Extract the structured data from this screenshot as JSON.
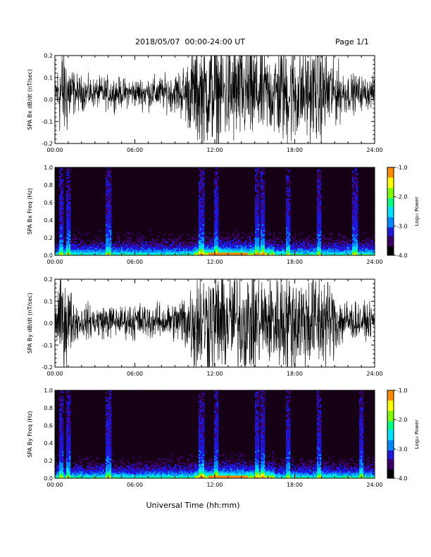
{
  "header": {
    "title": "2018/05/07  00:00-24:00 UT",
    "page": "Page 1/1"
  },
  "colors": {
    "trace": "#000000",
    "spectrogram_background": "#160016",
    "colormap": [
      "#000000",
      "#3b0066",
      "#1f17d9",
      "#0088ff",
      "#00e0ff",
      "#00ff80",
      "#80ff00",
      "#ffff00",
      "#ff8c00",
      "#ff0000"
    ]
  },
  "chart_data": [
    {
      "type": "line",
      "ylabel": "SPA Bx dB/dt (nT/sec)",
      "ylim": [
        -0.2,
        0.2
      ],
      "yticks": [
        "0.2",
        "0.1",
        "0.0",
        "-0.1",
        "-0.2"
      ],
      "xlim": [
        0,
        24
      ],
      "xticks": [
        "00:00",
        "06:00",
        "12:00",
        "18:00",
        "24:00"
      ],
      "grid": false,
      "amplitude_envelope": {
        "hours": [
          0,
          0.5,
          1,
          1.5,
          2,
          3,
          4,
          5,
          6,
          7,
          8,
          9,
          10,
          10.5,
          11,
          12,
          13,
          14,
          15,
          16,
          17,
          18,
          19,
          20,
          21,
          22,
          23,
          24
        ],
        "half_range": [
          0.04,
          0.2,
          0.15,
          0.06,
          0.05,
          0.04,
          0.05,
          0.04,
          0.04,
          0.05,
          0.05,
          0.06,
          0.12,
          0.2,
          0.2,
          0.2,
          0.2,
          0.2,
          0.2,
          0.15,
          0.2,
          0.2,
          0.17,
          0.2,
          0.12,
          0.06,
          0.05,
          0.04
        ]
      }
    },
    {
      "type": "heatmap",
      "ylabel": "SPA Bx Freq (Hz)",
      "ylim": [
        0.0,
        1.0
      ],
      "yticks": [
        "1.0",
        "0.8",
        "0.6",
        "0.4",
        "0.2",
        "0.0"
      ],
      "xlim": [
        0,
        24
      ],
      "xticks": [
        "00:00",
        "06:00",
        "12:00",
        "18:00",
        "24:00"
      ],
      "colorbar": {
        "label": "Log₁₀ Power",
        "range": [
          -4.0,
          -1.0
        ],
        "ticks": [
          "-1.0",
          "-2.0",
          "-3.0",
          "-4.0"
        ]
      },
      "bright_columns_hours": [
        0.5,
        1.0,
        4.0,
        11.0,
        12.1,
        15.2,
        15.6,
        17.5,
        19.8,
        22.5
      ],
      "low_freq_activity_hours": [
        10.5,
        16.5
      ]
    },
    {
      "type": "line",
      "ylabel": "SPA By dB/dt (nT/sec)",
      "ylim": [
        -0.2,
        0.2
      ],
      "yticks": [
        "0.2",
        "0.1",
        "0.0",
        "-0.1",
        "-0.2"
      ],
      "xlim": [
        0,
        24
      ],
      "xticks": [
        "00:00",
        "06:00",
        "12:00",
        "18:00",
        "24:00"
      ],
      "grid": false,
      "amplitude_envelope": {
        "hours": [
          0,
          0.5,
          1,
          1.5,
          2,
          3,
          4,
          5,
          6,
          7,
          8,
          9,
          10,
          10.5,
          11,
          12,
          13,
          14,
          15,
          16,
          17,
          18,
          19,
          20,
          21,
          22,
          23,
          24
        ],
        "half_range": [
          0.04,
          0.18,
          0.14,
          0.06,
          0.05,
          0.05,
          0.05,
          0.04,
          0.06,
          0.05,
          0.05,
          0.06,
          0.12,
          0.2,
          0.2,
          0.2,
          0.2,
          0.2,
          0.2,
          0.16,
          0.2,
          0.2,
          0.18,
          0.2,
          0.12,
          0.07,
          0.05,
          0.04
        ]
      }
    },
    {
      "type": "heatmap",
      "ylabel": "SPA By Freq (Hz)",
      "ylim": [
        0.0,
        1.0
      ],
      "yticks": [
        "1.0",
        "0.8",
        "0.6",
        "0.4",
        "0.2",
        "0.0"
      ],
      "xlim": [
        0,
        24
      ],
      "xticks": [
        "00:00",
        "06:00",
        "12:00",
        "18:00",
        "24:00"
      ],
      "colorbar": {
        "label": "Log₁₀ Power",
        "range": [
          -4.0,
          -1.0
        ],
        "ticks": [
          "-1.0",
          "-2.0",
          "-3.0",
          "-4.0"
        ]
      },
      "bright_columns_hours": [
        0.5,
        1.0,
        4.0,
        11.0,
        12.1,
        15.2,
        15.6,
        17.5,
        19.8,
        23.0
      ],
      "low_freq_activity_hours": [
        10.5,
        16.5
      ]
    }
  ],
  "footer": {
    "xlabel": "Universal Time (hh:mm)"
  }
}
